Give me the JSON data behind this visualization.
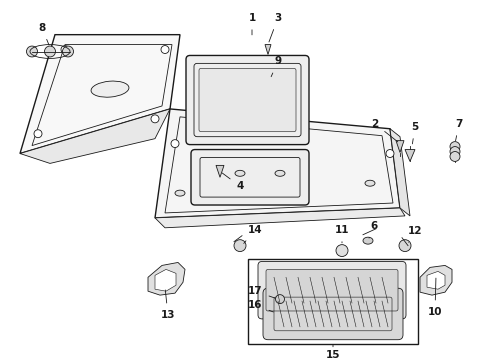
{
  "bg_color": "#ffffff",
  "line_color": "#1a1a1a",
  "fig_width": 4.89,
  "fig_height": 3.6,
  "dpi": 100,
  "font_size": 7.5,
  "lw_main": 1.0,
  "lw_thin": 0.6,
  "lw_inner": 0.5
}
